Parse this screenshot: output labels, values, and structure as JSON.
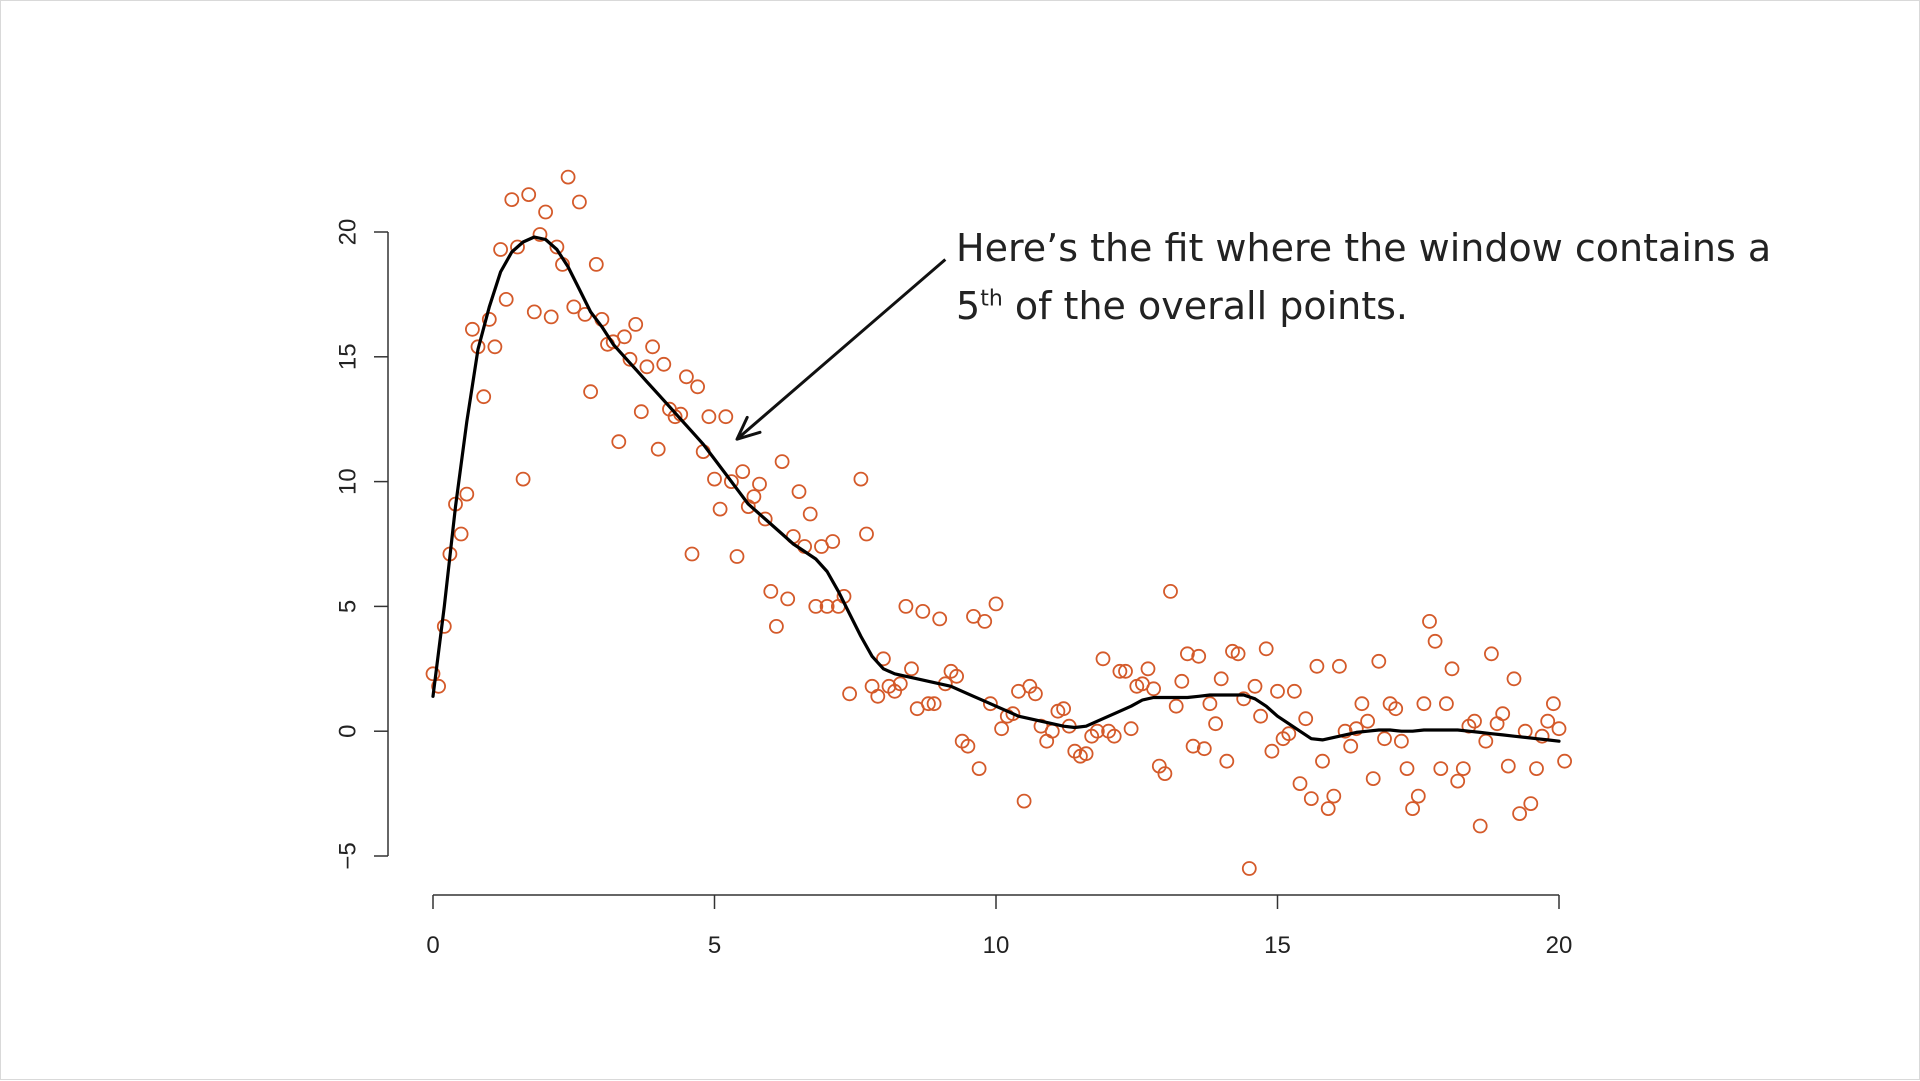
{
  "annotation": {
    "line1": "Here’s the fit where the window contains a",
    "line2_number": "5",
    "line2_sup": "th",
    "line2_rest": " of the overall points."
  },
  "chart_data": {
    "type": "scatter",
    "title": "",
    "xlabel": "",
    "ylabel": "",
    "xlim": [
      0,
      20
    ],
    "ylim": [
      -5,
      20
    ],
    "x_ticks": [
      0,
      5,
      10,
      15,
      20
    ],
    "y_ticks": [
      -5,
      0,
      5,
      10,
      15,
      20
    ],
    "grid": false,
    "colors": {
      "points": "#d45a2a",
      "fit": "#000000",
      "axes": "#333333"
    },
    "points": [
      [
        0.0,
        2.3
      ],
      [
        0.1,
        1.8
      ],
      [
        0.2,
        4.2
      ],
      [
        0.3,
        7.1
      ],
      [
        0.4,
        9.1
      ],
      [
        0.5,
        7.9
      ],
      [
        0.6,
        9.5
      ],
      [
        0.7,
        16.1
      ],
      [
        0.8,
        15.4
      ],
      [
        0.9,
        13.4
      ],
      [
        1.0,
        16.5
      ],
      [
        1.1,
        15.4
      ],
      [
        1.2,
        19.3
      ],
      [
        1.3,
        17.3
      ],
      [
        1.4,
        21.3
      ],
      [
        1.5,
        19.4
      ],
      [
        1.6,
        10.1
      ],
      [
        1.7,
        21.5
      ],
      [
        1.8,
        16.8
      ],
      [
        1.9,
        19.9
      ],
      [
        2.0,
        20.8
      ],
      [
        2.1,
        16.6
      ],
      [
        2.2,
        19.4
      ],
      [
        2.3,
        18.7
      ],
      [
        2.4,
        22.2
      ],
      [
        2.5,
        17.0
      ],
      [
        2.6,
        21.2
      ],
      [
        2.7,
        16.7
      ],
      [
        2.8,
        13.6
      ],
      [
        2.9,
        18.7
      ],
      [
        3.0,
        16.5
      ],
      [
        3.1,
        15.5
      ],
      [
        3.2,
        15.6
      ],
      [
        3.3,
        11.6
      ],
      [
        3.4,
        15.8
      ],
      [
        3.5,
        14.9
      ],
      [
        3.6,
        16.3
      ],
      [
        3.7,
        12.8
      ],
      [
        3.8,
        14.6
      ],
      [
        3.9,
        15.4
      ],
      [
        4.0,
        11.3
      ],
      [
        4.1,
        14.7
      ],
      [
        4.2,
        12.9
      ],
      [
        4.3,
        12.6
      ],
      [
        4.4,
        12.7
      ],
      [
        4.5,
        14.2
      ],
      [
        4.6,
        7.1
      ],
      [
        4.7,
        13.8
      ],
      [
        4.8,
        11.2
      ],
      [
        4.9,
        12.6
      ],
      [
        5.0,
        10.1
      ],
      [
        5.1,
        8.9
      ],
      [
        5.2,
        12.6
      ],
      [
        5.3,
        10.0
      ],
      [
        5.4,
        7.0
      ],
      [
        5.5,
        10.4
      ],
      [
        5.6,
        9.0
      ],
      [
        5.7,
        9.4
      ],
      [
        5.8,
        9.9
      ],
      [
        5.9,
        8.5
      ],
      [
        6.0,
        5.6
      ],
      [
        6.1,
        4.2
      ],
      [
        6.2,
        10.8
      ],
      [
        6.3,
        5.3
      ],
      [
        6.4,
        7.8
      ],
      [
        6.5,
        9.6
      ],
      [
        6.6,
        7.4
      ],
      [
        6.7,
        8.7
      ],
      [
        6.8,
        5.0
      ],
      [
        6.9,
        7.4
      ],
      [
        7.0,
        5.0
      ],
      [
        7.1,
        7.6
      ],
      [
        7.2,
        5.0
      ],
      [
        7.3,
        5.4
      ],
      [
        7.4,
        1.5
      ],
      [
        7.6,
        10.1
      ],
      [
        7.7,
        7.9
      ],
      [
        7.8,
        1.8
      ],
      [
        7.9,
        1.4
      ],
      [
        8.0,
        2.9
      ],
      [
        8.1,
        1.8
      ],
      [
        8.2,
        1.6
      ],
      [
        8.3,
        1.9
      ],
      [
        8.4,
        5.0
      ],
      [
        8.5,
        2.5
      ],
      [
        8.6,
        0.9
      ],
      [
        8.7,
        4.8
      ],
      [
        8.8,
        1.1
      ],
      [
        8.9,
        1.1
      ],
      [
        9.0,
        4.5
      ],
      [
        9.1,
        1.9
      ],
      [
        9.2,
        2.4
      ],
      [
        9.3,
        2.2
      ],
      [
        9.4,
        -0.4
      ],
      [
        9.5,
        -0.6
      ],
      [
        9.6,
        4.6
      ],
      [
        9.7,
        -1.5
      ],
      [
        9.8,
        4.4
      ],
      [
        9.9,
        1.1
      ],
      [
        10.0,
        5.1
      ],
      [
        10.1,
        0.1
      ],
      [
        10.2,
        0.6
      ],
      [
        10.3,
        0.7
      ],
      [
        10.4,
        1.6
      ],
      [
        10.5,
        -2.8
      ],
      [
        10.6,
        1.8
      ],
      [
        10.7,
        1.5
      ],
      [
        10.8,
        0.2
      ],
      [
        10.9,
        -0.4
      ],
      [
        11.0,
        0.0
      ],
      [
        11.1,
        0.8
      ],
      [
        11.2,
        0.9
      ],
      [
        11.3,
        0.2
      ],
      [
        11.4,
        -0.8
      ],
      [
        11.5,
        -1.0
      ],
      [
        11.6,
        -0.9
      ],
      [
        11.7,
        -0.2
      ],
      [
        11.8,
        0.0
      ],
      [
        11.9,
        2.9
      ],
      [
        12.0,
        0.0
      ],
      [
        12.1,
        -0.2
      ],
      [
        12.2,
        2.4
      ],
      [
        12.3,
        2.4
      ],
      [
        12.4,
        0.1
      ],
      [
        12.5,
        1.8
      ],
      [
        12.6,
        1.9
      ],
      [
        12.7,
        2.5
      ],
      [
        12.8,
        1.7
      ],
      [
        12.9,
        -1.4
      ],
      [
        13.0,
        -1.7
      ],
      [
        13.1,
        5.6
      ],
      [
        13.2,
        1.0
      ],
      [
        13.3,
        2.0
      ],
      [
        13.4,
        3.1
      ],
      [
        13.5,
        -0.6
      ],
      [
        13.6,
        3.0
      ],
      [
        13.7,
        -0.7
      ],
      [
        13.8,
        1.1
      ],
      [
        13.9,
        0.3
      ],
      [
        14.0,
        2.1
      ],
      [
        14.1,
        -1.2
      ],
      [
        14.2,
        3.2
      ],
      [
        14.3,
        3.1
      ],
      [
        14.4,
        1.3
      ],
      [
        14.5,
        -5.5
      ],
      [
        14.6,
        1.8
      ],
      [
        14.7,
        0.6
      ],
      [
        14.8,
        3.3
      ],
      [
        14.9,
        -0.8
      ],
      [
        15.0,
        1.6
      ],
      [
        15.1,
        -0.3
      ],
      [
        15.2,
        -0.1
      ],
      [
        15.3,
        1.6
      ],
      [
        15.4,
        -2.1
      ],
      [
        15.5,
        0.5
      ],
      [
        15.6,
        -2.7
      ],
      [
        15.7,
        2.6
      ],
      [
        15.8,
        -1.2
      ],
      [
        15.9,
        -3.1
      ],
      [
        16.0,
        -2.6
      ],
      [
        16.1,
        2.6
      ],
      [
        16.2,
        0.0
      ],
      [
        16.3,
        -0.6
      ],
      [
        16.4,
        0.1
      ],
      [
        16.5,
        1.1
      ],
      [
        16.6,
        0.4
      ],
      [
        16.7,
        -1.9
      ],
      [
        16.8,
        2.8
      ],
      [
        16.9,
        -0.3
      ],
      [
        17.0,
        1.1
      ],
      [
        17.1,
        0.9
      ],
      [
        17.2,
        -0.4
      ],
      [
        17.3,
        -1.5
      ],
      [
        17.4,
        -3.1
      ],
      [
        17.5,
        -2.6
      ],
      [
        17.6,
        1.1
      ],
      [
        17.7,
        4.4
      ],
      [
        17.8,
        3.6
      ],
      [
        17.9,
        -1.5
      ],
      [
        18.0,
        1.1
      ],
      [
        18.1,
        2.5
      ],
      [
        18.2,
        -2.0
      ],
      [
        18.3,
        -1.5
      ],
      [
        18.4,
        0.2
      ],
      [
        18.5,
        0.4
      ],
      [
        18.6,
        -3.8
      ],
      [
        18.7,
        -0.4
      ],
      [
        18.8,
        3.1
      ],
      [
        18.9,
        0.3
      ],
      [
        19.0,
        0.7
      ],
      [
        19.1,
        -1.4
      ],
      [
        19.2,
        2.1
      ],
      [
        19.3,
        -3.3
      ],
      [
        19.4,
        0.0
      ],
      [
        19.5,
        -2.9
      ],
      [
        19.6,
        -1.5
      ],
      [
        19.7,
        -0.2
      ],
      [
        19.8,
        0.4
      ],
      [
        19.9,
        1.1
      ],
      [
        20.0,
        0.1
      ],
      [
        20.1,
        -1.2
      ]
    ],
    "fit_line": [
      [
        0.0,
        1.4
      ],
      [
        0.2,
        5.0
      ],
      [
        0.4,
        9.0
      ],
      [
        0.6,
        12.4
      ],
      [
        0.8,
        15.3
      ],
      [
        1.0,
        17.0
      ],
      [
        1.2,
        18.4
      ],
      [
        1.4,
        19.2
      ],
      [
        1.6,
        19.6
      ],
      [
        1.8,
        19.8
      ],
      [
        2.0,
        19.7
      ],
      [
        2.2,
        19.3
      ],
      [
        2.4,
        18.6
      ],
      [
        2.6,
        17.7
      ],
      [
        2.8,
        16.8
      ],
      [
        3.0,
        16.2
      ],
      [
        3.2,
        15.5
      ],
      [
        3.4,
        15.0
      ],
      [
        3.6,
        14.5
      ],
      [
        3.8,
        14.0
      ],
      [
        4.0,
        13.5
      ],
      [
        4.2,
        13.0
      ],
      [
        4.4,
        12.5
      ],
      [
        4.6,
        12.0
      ],
      [
        4.8,
        11.5
      ],
      [
        5.0,
        10.9
      ],
      [
        5.2,
        10.3
      ],
      [
        5.4,
        9.7
      ],
      [
        5.6,
        9.1
      ],
      [
        5.8,
        8.7
      ],
      [
        6.0,
        8.3
      ],
      [
        6.2,
        7.9
      ],
      [
        6.4,
        7.5
      ],
      [
        6.6,
        7.2
      ],
      [
        6.8,
        6.9
      ],
      [
        7.0,
        6.4
      ],
      [
        7.2,
        5.6
      ],
      [
        7.4,
        4.7
      ],
      [
        7.6,
        3.8
      ],
      [
        7.8,
        3.0
      ],
      [
        8.0,
        2.5
      ],
      [
        8.2,
        2.3
      ],
      [
        8.4,
        2.2
      ],
      [
        8.6,
        2.1
      ],
      [
        8.8,
        2.0
      ],
      [
        9.0,
        1.9
      ],
      [
        9.2,
        1.8
      ],
      [
        9.4,
        1.6
      ],
      [
        9.6,
        1.4
      ],
      [
        9.8,
        1.2
      ],
      [
        10.0,
        1.0
      ],
      [
        10.2,
        0.8
      ],
      [
        10.4,
        0.6
      ],
      [
        10.6,
        0.5
      ],
      [
        10.8,
        0.4
      ],
      [
        11.0,
        0.3
      ],
      [
        11.2,
        0.2
      ],
      [
        11.4,
        0.15
      ],
      [
        11.6,
        0.2
      ],
      [
        11.8,
        0.4
      ],
      [
        12.0,
        0.6
      ],
      [
        12.2,
        0.8
      ],
      [
        12.4,
        1.0
      ],
      [
        12.6,
        1.25
      ],
      [
        12.8,
        1.35
      ],
      [
        13.0,
        1.35
      ],
      [
        13.2,
        1.35
      ],
      [
        13.4,
        1.35
      ],
      [
        13.6,
        1.4
      ],
      [
        13.8,
        1.45
      ],
      [
        14.0,
        1.45
      ],
      [
        14.2,
        1.45
      ],
      [
        14.4,
        1.45
      ],
      [
        14.6,
        1.3
      ],
      [
        14.8,
        1.0
      ],
      [
        15.0,
        0.6
      ],
      [
        15.2,
        0.3
      ],
      [
        15.4,
        0.0
      ],
      [
        15.6,
        -0.3
      ],
      [
        15.8,
        -0.35
      ],
      [
        16.0,
        -0.25
      ],
      [
        16.2,
        -0.15
      ],
      [
        16.4,
        -0.05
      ],
      [
        16.6,
        0.0
      ],
      [
        16.8,
        0.05
      ],
      [
        17.0,
        0.05
      ],
      [
        17.2,
        0.0
      ],
      [
        17.4,
        0.0
      ],
      [
        17.6,
        0.05
      ],
      [
        17.8,
        0.05
      ],
      [
        18.0,
        0.05
      ],
      [
        18.2,
        0.05
      ],
      [
        18.4,
        0.0
      ],
      [
        18.6,
        -0.05
      ],
      [
        18.8,
        -0.1
      ],
      [
        19.0,
        -0.15
      ],
      [
        19.2,
        -0.2
      ],
      [
        19.4,
        -0.25
      ],
      [
        19.6,
        -0.3
      ],
      [
        19.8,
        -0.35
      ],
      [
        20.0,
        -0.4
      ]
    ],
    "arrow": {
      "from": [
        9.1,
        18.9
      ],
      "to": [
        5.4,
        11.7
      ]
    }
  }
}
